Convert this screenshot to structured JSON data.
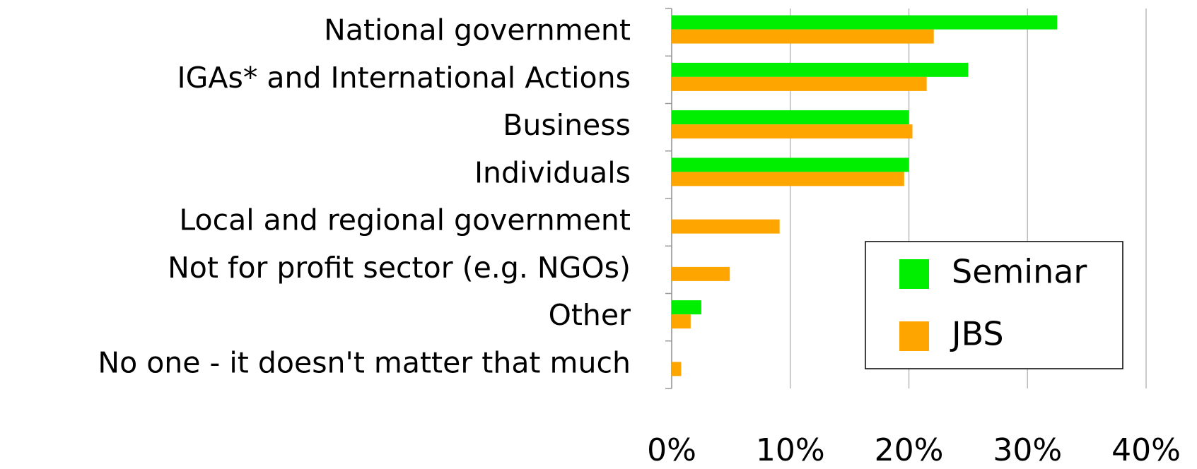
{
  "chart_data": {
    "type": "hbar",
    "categories": [
      "National government",
      "IGAs* and International Actions",
      "Business",
      "Individuals",
      "Local and regional government",
      "Not for profit sector (e.g. NGOs)",
      "Other",
      "No one - it doesn't matter that much"
    ],
    "series": [
      {
        "name": "Seminar",
        "color": "#00ee00",
        "values": [
          32.5,
          25,
          20,
          20,
          0,
          0,
          2.5,
          0
        ]
      },
      {
        "name": "JBS",
        "color": "#ffa500",
        "values": [
          22.1,
          21.5,
          20.3,
          19.6,
          9.1,
          4.9,
          1.6,
          0.8
        ]
      }
    ],
    "xlim": [
      0,
      40
    ],
    "xticks": [
      {
        "value": 0,
        "label": "0%"
      },
      {
        "value": 10,
        "label": "10%"
      },
      {
        "value": 20,
        "label": "20%"
      },
      {
        "value": 30,
        "label": "30%"
      },
      {
        "value": 40,
        "label": "40%"
      }
    ],
    "grid": true,
    "legend_position": "lower right"
  }
}
